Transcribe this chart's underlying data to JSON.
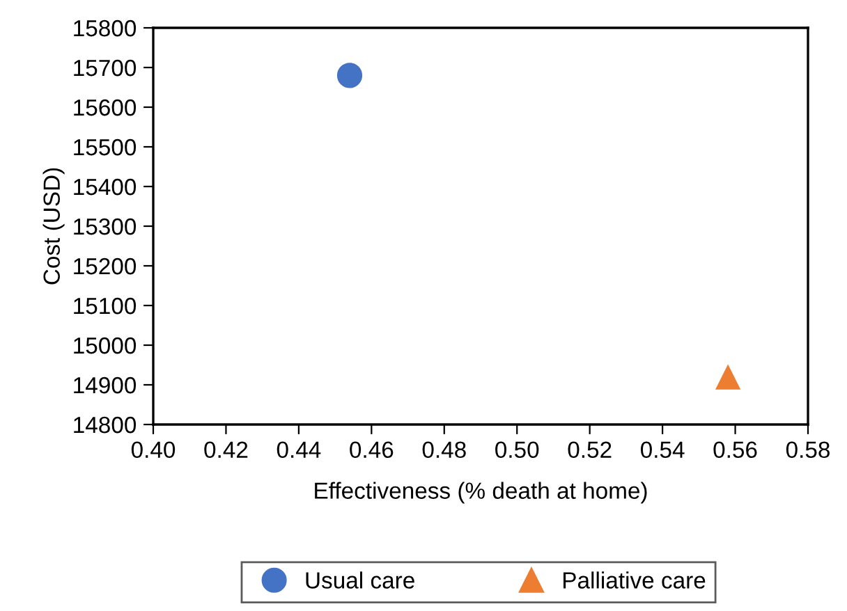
{
  "chart_data": {
    "type": "scatter",
    "xlabel": "Effectiveness (% death at home)",
    "ylabel": "Cost (USD)",
    "series": [
      {
        "name": "Usual care",
        "color": "#4472c4",
        "marker": "circle",
        "x": [
          0.454
        ],
        "values": [
          15680
        ]
      },
      {
        "name": "Palliative care",
        "color": "#ed7d31",
        "marker": "triangle",
        "x": [
          0.558
        ],
        "values": [
          14920
        ]
      }
    ],
    "xlim": [
      0.4,
      0.58
    ],
    "xticks": [
      {
        "value": 0.4,
        "label": "0.40"
      },
      {
        "value": 0.42,
        "label": "0.42"
      },
      {
        "value": 0.44,
        "label": "0.44"
      },
      {
        "value": 0.46,
        "label": "0.46"
      },
      {
        "value": 0.48,
        "label": "0.48"
      },
      {
        "value": 0.5,
        "label": "0.50"
      },
      {
        "value": 0.52,
        "label": "0.52"
      },
      {
        "value": 0.54,
        "label": "0.54"
      },
      {
        "value": 0.56,
        "label": "0.56"
      },
      {
        "value": 0.58,
        "label": "0.58"
      }
    ],
    "ylim": [
      14800,
      15800
    ],
    "yticks": [
      14800,
      14900,
      15000,
      15100,
      15200,
      15300,
      15400,
      15500,
      15600,
      15700,
      15800
    ],
    "grid": false,
    "legend": "bottom"
  }
}
